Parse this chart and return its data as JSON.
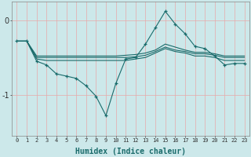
{
  "xlabel": "Humidex (Indice chaleur)",
  "background_color": "#cce8ea",
  "grid_color": "#e8a8a8",
  "line_color": "#1a6b6b",
  "x": [
    0,
    1,
    2,
    3,
    4,
    5,
    6,
    7,
    8,
    9,
    10,
    11,
    12,
    13,
    14,
    15,
    16,
    17,
    18,
    19,
    20,
    21,
    22,
    23
  ],
  "line1": [
    -0.28,
    -0.28,
    -0.55,
    -0.6,
    -0.72,
    -0.75,
    -0.78,
    -0.88,
    -1.02,
    -1.28,
    -0.85,
    -0.52,
    -0.5,
    -0.32,
    -0.1,
    0.12,
    -0.05,
    -0.18,
    -0.35,
    -0.38,
    -0.48,
    -0.6,
    -0.58,
    -0.58
  ],
  "line2": [
    -0.28,
    -0.28,
    -0.52,
    -0.54,
    -0.54,
    -0.54,
    -0.54,
    -0.54,
    -0.54,
    -0.54,
    -0.54,
    -0.54,
    -0.52,
    -0.5,
    -0.44,
    -0.38,
    -0.42,
    -0.44,
    -0.48,
    -0.48,
    -0.5,
    -0.54,
    -0.54,
    -0.54
  ],
  "line3": [
    -0.28,
    -0.28,
    -0.5,
    -0.5,
    -0.5,
    -0.5,
    -0.5,
    -0.5,
    -0.5,
    -0.5,
    -0.5,
    -0.5,
    -0.49,
    -0.47,
    -0.42,
    -0.36,
    -0.4,
    -0.42,
    -0.45,
    -0.45,
    -0.47,
    -0.5,
    -0.5,
    -0.5
  ],
  "line4": [
    -0.28,
    -0.28,
    -0.48,
    -0.48,
    -0.48,
    -0.48,
    -0.48,
    -0.48,
    -0.48,
    -0.48,
    -0.48,
    -0.47,
    -0.46,
    -0.44,
    -0.4,
    -0.32,
    -0.36,
    -0.4,
    -0.43,
    -0.43,
    -0.45,
    -0.48,
    -0.48,
    -0.48
  ],
  "ylim": [
    -1.55,
    0.25
  ],
  "yticks": [
    -1.0,
    0.0
  ],
  "xticks": [
    0,
    1,
    2,
    3,
    4,
    5,
    6,
    7,
    8,
    9,
    10,
    11,
    12,
    13,
    14,
    15,
    16,
    17,
    18,
    19,
    20,
    21,
    22,
    23
  ]
}
